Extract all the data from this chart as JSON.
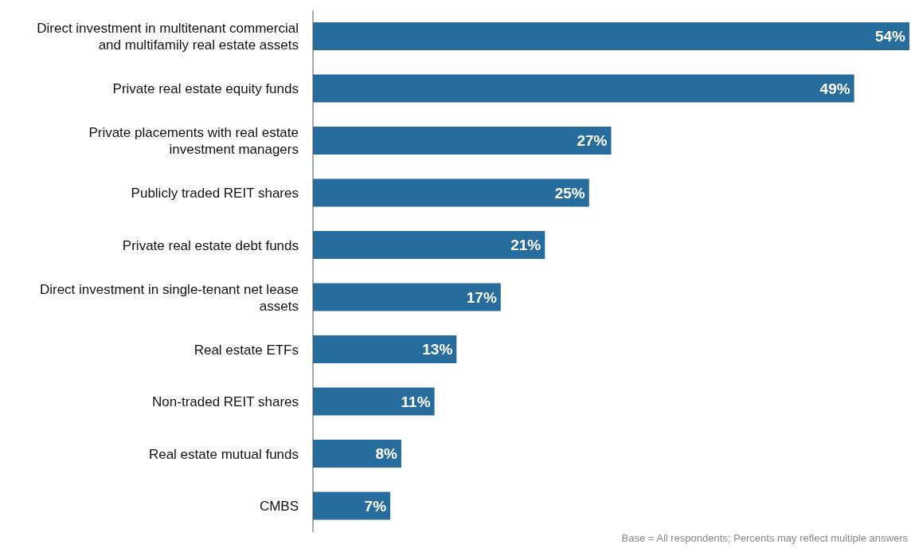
{
  "chart_data": {
    "type": "bar",
    "orientation": "horizontal",
    "categories": [
      "Direct investment in multitenant commercial and multifamily real estate assets",
      "Private real estate equity funds",
      "Private placements with real estate investment managers",
      "Publicly traded REIT shares",
      "Private real estate debt funds",
      "Direct investment in single-tenant net lease assets",
      "Real estate ETFs",
      "Non-traded REIT shares",
      "Real estate mutual funds",
      "CMBS"
    ],
    "values": [
      54,
      49,
      27,
      25,
      21,
      17,
      13,
      11,
      8,
      7
    ],
    "value_labels": [
      "54%",
      "49%",
      "27%",
      "25%",
      "21%",
      "17%",
      "13%",
      "11%",
      "8%",
      "7%"
    ],
    "color": "#266c9c",
    "annotations": [
      "Base = All respondents; Percents may reflect multiple answers"
    ]
  }
}
